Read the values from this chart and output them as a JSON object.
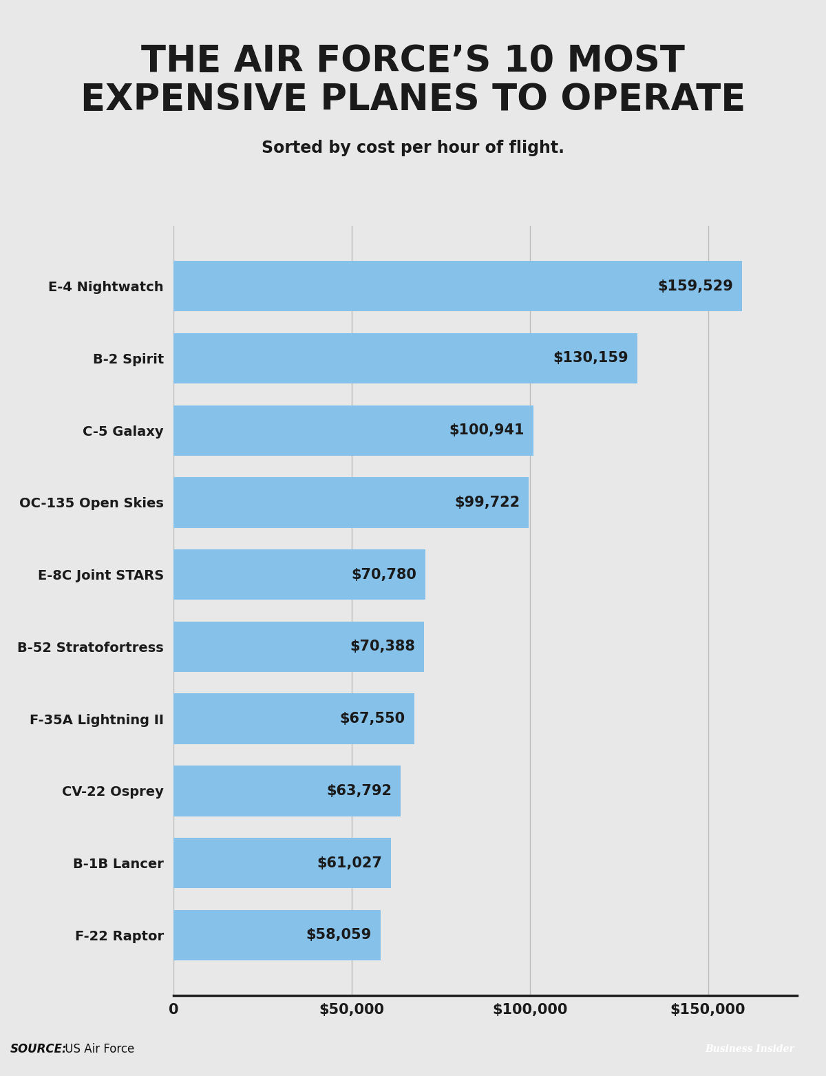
{
  "title": "THE AIR FORCE’S 10 MOST\nEXPENSIVE PLANES TO OPERATE",
  "subtitle": "Sorted by cost per hour of flight.",
  "categories": [
    "E-4 Nightwatch",
    "B-2 Spirit",
    "C-5 Galaxy",
    "OC-135 Open Skies",
    "E-8C Joint STARS",
    "B-52 Stratofortress",
    "F-35A Lightning II",
    "CV-22 Osprey",
    "B-1B Lancer",
    "F-22 Raptor"
  ],
  "values": [
    159529,
    130159,
    100941,
    99722,
    70780,
    70388,
    67550,
    63792,
    61027,
    58059
  ],
  "bar_color": "#85C1E9",
  "background_color": "#E8E8E8",
  "plot_bg_color": "#E8E8E8",
  "text_color": "#1a1a1a",
  "label_color": "#1a1a1a",
  "value_labels": [
    "$159,529",
    "$130,159",
    "$100,941",
    "$99,722",
    "$70,780",
    "$70,388",
    "$67,550",
    "$63,792",
    "$61,027",
    "$58,059"
  ],
  "x_tick_labels": [
    "0",
    "$50,000",
    "$100,000",
    "$150,000"
  ],
  "x_tick_values": [
    0,
    50000,
    100000,
    150000
  ],
  "xlim": [
    0,
    175000
  ],
  "source_text_bold": "SOURCE:",
  "source_text_normal": " US Air Force",
  "logo_text": "Business Insider",
  "logo_bg": "#1a6496",
  "logo_text_color": "#ffffff",
  "title_fontsize": 38,
  "subtitle_fontsize": 17,
  "bar_label_fontsize": 15,
  "tick_fontsize": 15,
  "category_fontsize": 14,
  "source_fontsize": 12,
  "footer_bg": "#C5CDD5",
  "grid_color": "#BBBBBB",
  "bottom_line_color": "#222222"
}
